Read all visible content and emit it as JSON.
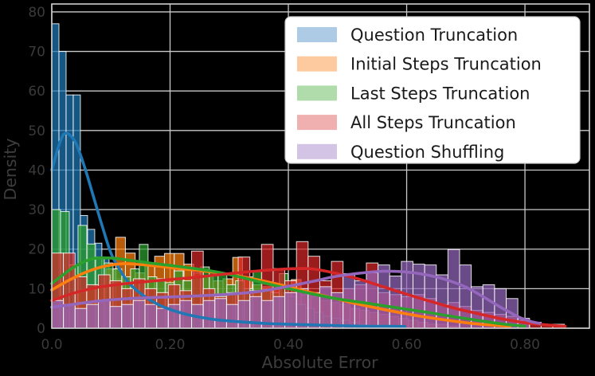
{
  "chart_data": {
    "type": "histogram_kde_overlay",
    "title": "",
    "xlabel": "Absolute Error",
    "ylabel": "Density",
    "xlim": [
      0,
      0.909
    ],
    "ylim": [
      0,
      82
    ],
    "grid": true,
    "legend_position": "upper right",
    "xticks": {
      "values": [
        0,
        0.2,
        0.4,
        0.6,
        0.8
      ],
      "labels": [
        "0.0",
        "0.20",
        "0.40",
        "0.60",
        "0.80"
      ]
    },
    "yticks": {
      "values": [
        0,
        10,
        20,
        30,
        40,
        50,
        60,
        70,
        80
      ],
      "labels": [
        "0",
        "10",
        "20",
        "30",
        "40",
        "50",
        "60",
        "70",
        "80"
      ]
    },
    "series": [
      {
        "name": "Question Truncation",
        "color": "#1f77b4",
        "legend_swatch": "#aecbe5",
        "bins": {
          "start": 0.0,
          "width": 0.0121
        },
        "bar_values": [
          77,
          70,
          59,
          59,
          28.5,
          25,
          21.5,
          18,
          15,
          12.5,
          10,
          8,
          6.5,
          5.5,
          4.5,
          4,
          3.5,
          3,
          2.5,
          2,
          2,
          1.5,
          1.5,
          1,
          1,
          1,
          0.5,
          0.5,
          0.5,
          0.5
        ],
        "kde": [
          [
            0,
            40
          ],
          [
            0.015,
            47.5
          ],
          [
            0.025,
            49.3
          ],
          [
            0.04,
            47
          ],
          [
            0.055,
            41
          ],
          [
            0.07,
            33.5
          ],
          [
            0.085,
            26
          ],
          [
            0.1,
            19
          ],
          [
            0.115,
            14.8
          ],
          [
            0.13,
            11.5
          ],
          [
            0.15,
            8.8
          ],
          [
            0.17,
            6.8
          ],
          [
            0.19,
            5.3
          ],
          [
            0.22,
            3.8
          ],
          [
            0.25,
            2.8
          ],
          [
            0.28,
            2.1
          ],
          [
            0.32,
            1.6
          ],
          [
            0.36,
            1.2
          ],
          [
            0.4,
            1.0
          ],
          [
            0.45,
            0.8
          ],
          [
            0.5,
            0.6
          ],
          [
            0.55,
            0.5
          ],
          [
            0.597,
            0.45
          ]
        ]
      },
      {
        "name": "Initial Steps Truncation",
        "color": "#ff7f0e",
        "legend_swatch": "#fcca9e",
        "bins": {
          "start": 0.042,
          "width": 0.0165
        },
        "bar_values": [
          9,
          10,
          11,
          15,
          23,
          19,
          14,
          16,
          18.2,
          18.9,
          18.9,
          16.2,
          14,
          13,
          12,
          12.5,
          17.9,
          13,
          11,
          10.5,
          10,
          9,
          12.3,
          8.5,
          8,
          7,
          6.5,
          6,
          5,
          4.5,
          4,
          3.5,
          3,
          2.5,
          2,
          1.5,
          1,
          1,
          0.5
        ],
        "kde": [
          [
            0,
            9.7
          ],
          [
            0.03,
            12.2
          ],
          [
            0.06,
            14.3
          ],
          [
            0.09,
            15.7
          ],
          [
            0.12,
            16.3
          ],
          [
            0.15,
            16.1
          ],
          [
            0.18,
            15.7
          ],
          [
            0.22,
            15
          ],
          [
            0.26,
            14.4
          ],
          [
            0.3,
            13.6
          ],
          [
            0.34,
            12.5
          ],
          [
            0.38,
            11.2
          ],
          [
            0.42,
            9.7
          ],
          [
            0.46,
            8.2
          ],
          [
            0.5,
            6.7
          ],
          [
            0.54,
            5.4
          ],
          [
            0.58,
            4.2
          ],
          [
            0.62,
            3.1
          ],
          [
            0.66,
            2.2
          ],
          [
            0.7,
            1.4
          ],
          [
            0.74,
            0.8
          ],
          [
            0.775,
            0.5
          ]
        ]
      },
      {
        "name": "Last Steps Truncation",
        "color": "#2ca02c",
        "legend_swatch": "#b0dcab",
        "bins": {
          "start": 0.0,
          "width": 0.0148
        },
        "bar_values": [
          30,
          29.5,
          16,
          26,
          21.3,
          18,
          16.5,
          15,
          13,
          15,
          21.2,
          13,
          12.5,
          11.5,
          14.5,
          12,
          13,
          15.5,
          14,
          13.9,
          11,
          12,
          10,
          14.5,
          10,
          9,
          13.8,
          8,
          6,
          5,
          4,
          3,
          2.5,
          2,
          1.5,
          1
        ],
        "kde": [
          [
            0,
            11.3
          ],
          [
            0.03,
            14.7
          ],
          [
            0.05,
            16.5
          ],
          [
            0.07,
            17.6
          ],
          [
            0.09,
            17.8
          ],
          [
            0.11,
            17.6
          ],
          [
            0.14,
            17
          ],
          [
            0.17,
            16.4
          ],
          [
            0.21,
            15.7
          ],
          [
            0.25,
            14.9
          ],
          [
            0.28,
            14.2
          ],
          [
            0.32,
            12.9
          ],
          [
            0.36,
            11.4
          ],
          [
            0.4,
            10
          ],
          [
            0.44,
            8.7
          ],
          [
            0.48,
            7.5
          ],
          [
            0.52,
            6.6
          ],
          [
            0.56,
            5.7
          ],
          [
            0.6,
            4.8
          ],
          [
            0.64,
            3.9
          ],
          [
            0.68,
            2.9
          ],
          [
            0.72,
            2
          ],
          [
            0.76,
            1.1
          ],
          [
            0.8,
            0.5
          ]
        ]
      },
      {
        "name": "All Steps Truncation",
        "color": "#d62728",
        "legend_swatch": "#f0b0b0",
        "bins": {
          "start": 0.0,
          "width": 0.0197
        },
        "bar_values": [
          19,
          19,
          13,
          11,
          13.5,
          12,
          10,
          12.5,
          10,
          9,
          11,
          9.5,
          19.5,
          10,
          8,
          9,
          18,
          9.5,
          21.2,
          15.1,
          12,
          21.9,
          18.2,
          12,
          16.9,
          10,
          11,
          16.5,
          9,
          8.5,
          8,
          8.5,
          7.5,
          6,
          6.5,
          5.5,
          4.5,
          4,
          3.5,
          3,
          2,
          1.5,
          1,
          1
        ],
        "kde": [
          [
            0,
            7
          ],
          [
            0.04,
            9
          ],
          [
            0.08,
            10.4
          ],
          [
            0.12,
            11.2
          ],
          [
            0.16,
            11.8
          ],
          [
            0.2,
            12.3
          ],
          [
            0.25,
            13
          ],
          [
            0.3,
            13.8
          ],
          [
            0.35,
            14.5
          ],
          [
            0.4,
            15
          ],
          [
            0.44,
            15
          ],
          [
            0.48,
            13.9
          ],
          [
            0.52,
            12.4
          ],
          [
            0.56,
            10.5
          ],
          [
            0.6,
            8.6
          ],
          [
            0.64,
            6.8
          ],
          [
            0.68,
            5.1
          ],
          [
            0.72,
            3.7
          ],
          [
            0.76,
            2.4
          ],
          [
            0.8,
            1.4
          ],
          [
            0.84,
            0.8
          ],
          [
            0.868,
            0.5
          ]
        ]
      },
      {
        "name": "Question Shuffling",
        "color": "#9467bd",
        "legend_swatch": "#d3c3e5",
        "bins": {
          "start": 0.0,
          "width": 0.0197
        },
        "bar_values": [
          7,
          6,
          5,
          6,
          7,
          5.5,
          6,
          7,
          6,
          5,
          6,
          7,
          6,
          7,
          7.5,
          6,
          7,
          8,
          7,
          8,
          9,
          10,
          9,
          10.5,
          9,
          13.8,
          12,
          14,
          16,
          13.2,
          16.9,
          16.2,
          16,
          13.5,
          19.9,
          16,
          10.5,
          11,
          10,
          7.5,
          2.5
        ],
        "kde": [
          [
            0,
            5.3
          ],
          [
            0.04,
            6.1
          ],
          [
            0.08,
            6.9
          ],
          [
            0.12,
            7.4
          ],
          [
            0.16,
            7.7
          ],
          [
            0.2,
            7.9
          ],
          [
            0.25,
            8.2
          ],
          [
            0.3,
            8.6
          ],
          [
            0.35,
            9.3
          ],
          [
            0.4,
            10.6
          ],
          [
            0.44,
            11.8
          ],
          [
            0.48,
            13.1
          ],
          [
            0.52,
            13.9
          ],
          [
            0.56,
            14.4
          ],
          [
            0.6,
            14.2
          ],
          [
            0.64,
            13.3
          ],
          [
            0.67,
            12.1
          ],
          [
            0.7,
            10.4
          ],
          [
            0.73,
            7.9
          ],
          [
            0.76,
            5.2
          ],
          [
            0.79,
            2.8
          ],
          [
            0.81,
            1.7
          ],
          [
            0.825,
            1.2
          ]
        ]
      }
    ]
  },
  "style": {
    "figure_background": "#000000",
    "axes_background": "#000000",
    "grid_color": "#c9c9c9",
    "axes_border_color": "#cfcfcf",
    "tick_label_color": "#3a3a3a",
    "axis_label_color": "#3d3d3d",
    "bar_edge_color": "#ffffff",
    "bar_fill_opacity": 0.72,
    "legend": {
      "background": "#ffffff",
      "border_color": "#cccccc",
      "text_color": "#1a1a1a"
    }
  }
}
